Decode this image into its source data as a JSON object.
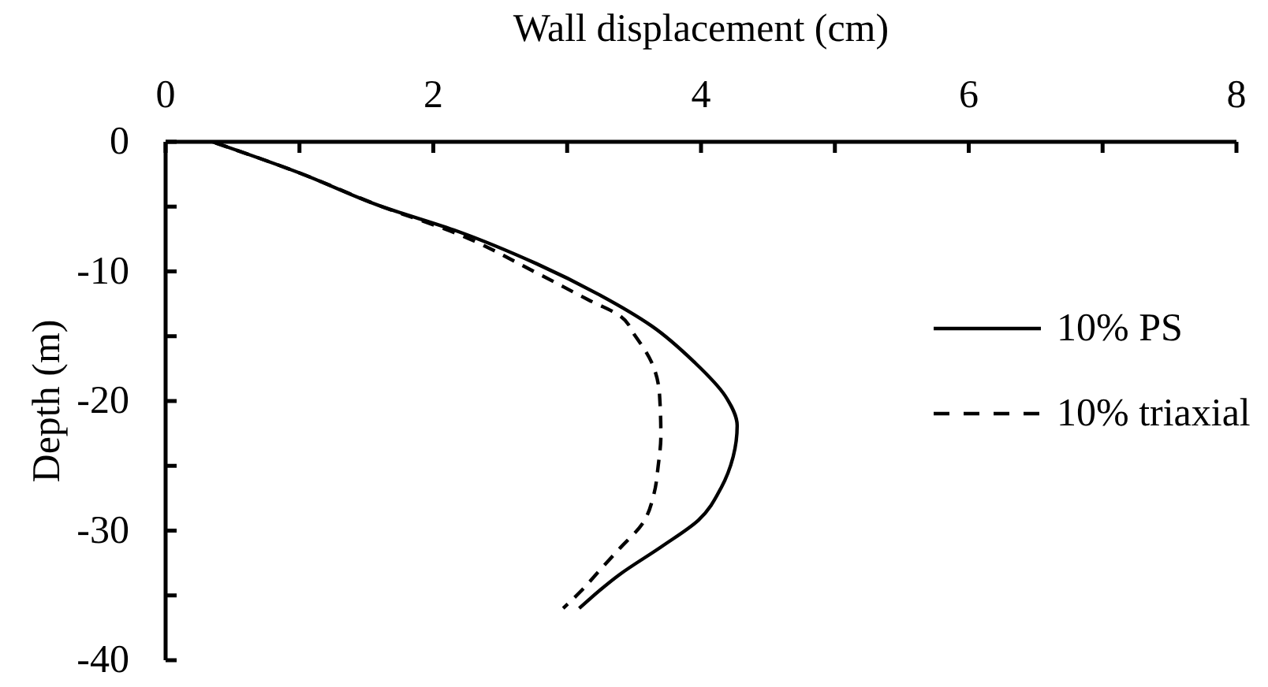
{
  "chart_data": {
    "type": "line",
    "xlabel": "Wall displacement (cm)",
    "ylabel": "Depth (m)",
    "xlim": [
      0,
      8
    ],
    "xticks": [
      0,
      {
        "value": 1,
        "label": null
      },
      2,
      {
        "value": 3,
        "label": null
      },
      4,
      {
        "value": 5,
        "label": null
      },
      6,
      {
        "value": 7,
        "label": null
      },
      8
    ],
    "ylim": [
      -40,
      0
    ],
    "yticks": [
      0,
      {
        "value": -5,
        "label": null
      },
      -10,
      {
        "value": -15,
        "label": null
      },
      -20,
      {
        "value": -25,
        "label": null
      },
      -30,
      {
        "value": -35,
        "label": null
      },
      -40
    ],
    "legend": "right",
    "series": [
      {
        "name": "10% PS",
        "color": "#000000",
        "line_style": "solid",
        "x": [
          0.35,
          1.0,
          1.59,
          2.18,
          2.77,
          3.24,
          3.63,
          3.95,
          4.18,
          4.27,
          4.24,
          4.15,
          3.98,
          3.71,
          3.39,
          3.09
        ],
        "values": [
          0,
          -2.4,
          -4.9,
          -6.9,
          -9.4,
          -11.8,
          -14.2,
          -17.0,
          -19.6,
          -21.9,
          -24.3,
          -26.7,
          -29.2,
          -31.2,
          -33.4,
          -36.0
        ]
      },
      {
        "name": "10% triaxial",
        "color": "#000000",
        "line_style": "dashed",
        "x": [
          0.35,
          1.0,
          1.59,
          2.18,
          2.77,
          3.16,
          3.39,
          3.51,
          3.63,
          3.69,
          3.7,
          3.68,
          3.65,
          3.56,
          3.39,
          3.24,
          3.1,
          2.97
        ],
        "values": [
          0,
          -2.4,
          -4.9,
          -7.1,
          -10.1,
          -12.2,
          -13.4,
          -15.0,
          -17.0,
          -19.5,
          -22.7,
          -25.0,
          -27.1,
          -29.5,
          -31.4,
          -33.1,
          -34.7,
          -36.0
        ]
      }
    ]
  }
}
